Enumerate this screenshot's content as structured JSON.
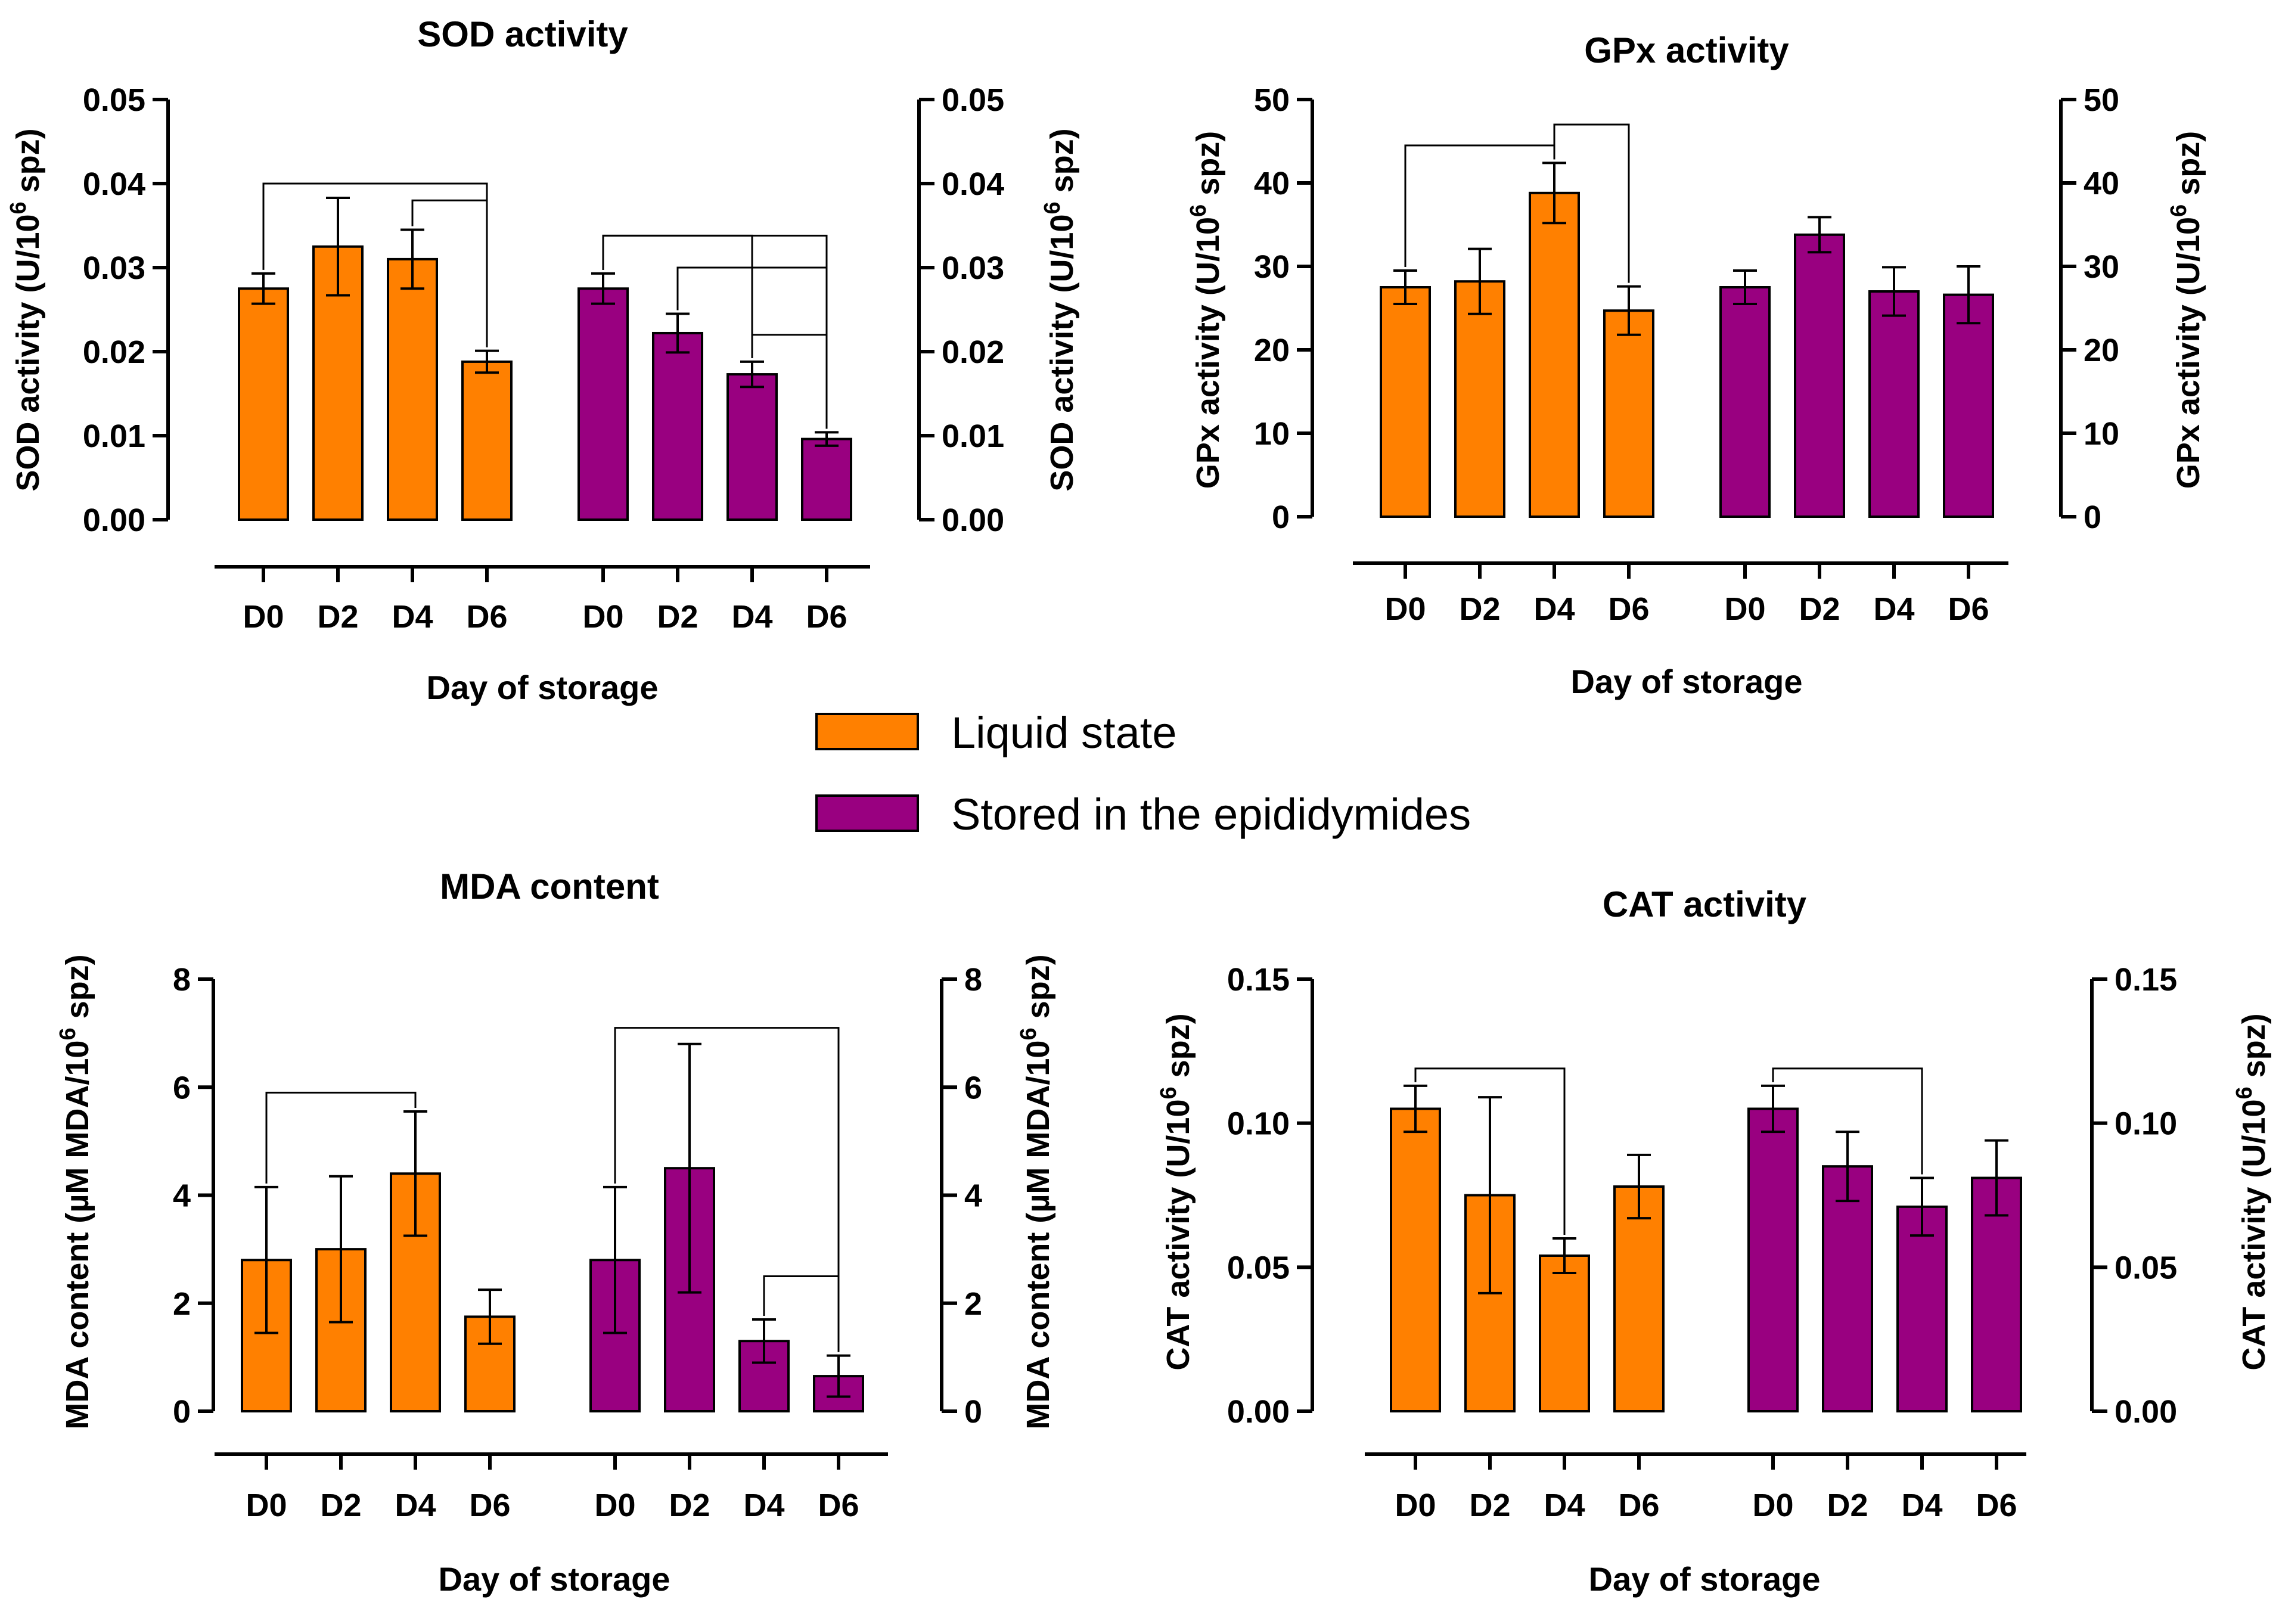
{
  "colors": {
    "liquid": "#FF8000",
    "epididymides": "#990080",
    "axis": "#000000"
  },
  "legend": [
    {
      "label": "Liquid state",
      "color": "#FF8000"
    },
    {
      "label": "Stored in the epididymides",
      "color": "#990080"
    }
  ],
  "chart_data": [
    {
      "type": "bar",
      "title": "SOD activity",
      "xlabel": "Day of storage",
      "ylabel": "SOD activity (U/10^6 spz)",
      "ylabel_parts": {
        "pre": "SOD activity (U/10",
        "sup": "6",
        "post": " spz)"
      },
      "ylim": [
        0,
        0.05
      ],
      "yticks": [
        "0.00",
        "0.01",
        "0.02",
        "0.03",
        "0.04",
        "0.05"
      ],
      "categories": [
        "D0",
        "D2",
        "D4",
        "D6"
      ],
      "series": [
        {
          "name": "Liquid state",
          "values": [
            0.0275,
            0.0325,
            0.031,
            0.0188
          ],
          "errors": [
            0.0018,
            0.0058,
            0.0035,
            0.0013
          ]
        },
        {
          "name": "Stored in the epididymides",
          "values": [
            0.0275,
            0.0222,
            0.0173,
            0.0096
          ],
          "errors": [
            0.0018,
            0.0023,
            0.0015,
            0.0008
          ]
        }
      ],
      "brackets": [
        {
          "series": 0,
          "from": 0,
          "to": 3,
          "y": 0.04
        },
        {
          "series": 0,
          "from": 2,
          "to": 3,
          "y": 0.038
        },
        {
          "series": 1,
          "from": 0,
          "to": 2,
          "y": 0.0338
        },
        {
          "series": 1,
          "from": 0,
          "to": 3,
          "y": 0.0338
        },
        {
          "series": 1,
          "from": 1,
          "to": 3,
          "y": 0.03
        },
        {
          "series": 1,
          "from": 2,
          "to": 3,
          "y": 0.022
        }
      ]
    },
    {
      "type": "bar",
      "title": "GPx activity",
      "xlabel": "Day of storage",
      "ylabel": "GPx activity (U/10^6 spz)",
      "ylabel_parts": {
        "pre": "GPx activity (U/10",
        "sup": "6",
        "post": " spz)"
      },
      "ylim": [
        0,
        50
      ],
      "yticks": [
        "0",
        "10",
        "20",
        "30",
        "40",
        "50"
      ],
      "categories": [
        "D0",
        "D2",
        "D4",
        "D6"
      ],
      "series": [
        {
          "name": "Liquid state",
          "values": [
            27.5,
            28.2,
            38.8,
            24.7
          ],
          "errors": [
            2.0,
            3.9,
            3.6,
            2.9
          ]
        },
        {
          "name": "Stored in the epididymides",
          "values": [
            27.5,
            33.8,
            27.0,
            26.6
          ],
          "errors": [
            2.0,
            2.1,
            2.9,
            3.4
          ]
        }
      ],
      "brackets": [
        {
          "series": 0,
          "from": 0,
          "to": 2,
          "y": 44.5
        },
        {
          "series": 0,
          "from": 2,
          "to": 3,
          "y": 47.0
        }
      ]
    },
    {
      "type": "bar",
      "title": "MDA content",
      "xlabel": "Day of storage",
      "ylabel": "MDA content (µM MDA/10^6 spz)",
      "ylabel_parts": {
        "pre": "MDA content (µM MDA/10",
        "sup": "6",
        "post": " spz)"
      },
      "ylim": [
        0,
        8
      ],
      "yticks": [
        "0",
        "2",
        "4",
        "6",
        "8"
      ],
      "categories": [
        "D0",
        "D2",
        "D4",
        "D6"
      ],
      "series": [
        {
          "name": "Liquid state",
          "values": [
            2.8,
            3.0,
            4.4,
            1.75
          ],
          "errors": [
            1.35,
            1.35,
            1.15,
            0.5
          ]
        },
        {
          "name": "Stored in the epididymides",
          "values": [
            2.8,
            4.5,
            1.3,
            0.65
          ],
          "errors": [
            1.35,
            2.3,
            0.4,
            0.38
          ]
        }
      ],
      "brackets": [
        {
          "series": 0,
          "from": 0,
          "to": 2,
          "y": 5.9
        },
        {
          "series": 1,
          "from": 0,
          "to": 3,
          "y": 7.1
        },
        {
          "series": 1,
          "from": 2,
          "to": 3,
          "y": 2.5
        }
      ]
    },
    {
      "type": "bar",
      "title": "CAT activity",
      "xlabel": "Day of storage",
      "ylabel": "CAT activity (U/10^6 spz)",
      "ylabel_parts": {
        "pre": "CAT activity (U/10",
        "sup": "6",
        "post": " spz)"
      },
      "ylim": [
        0,
        0.15
      ],
      "yticks": [
        "0.00",
        "0.05",
        "0.10",
        "0.15"
      ],
      "categories": [
        "D0",
        "D2",
        "D4",
        "D6"
      ],
      "series": [
        {
          "name": "Liquid state",
          "values": [
            0.105,
            0.075,
            0.054,
            0.078
          ],
          "errors": [
            0.008,
            0.034,
            0.006,
            0.011
          ]
        },
        {
          "name": "Stored in the epididymides",
          "values": [
            0.105,
            0.085,
            0.071,
            0.081
          ],
          "errors": [
            0.008,
            0.012,
            0.01,
            0.013
          ]
        }
      ],
      "brackets": [
        {
          "series": 0,
          "from": 0,
          "to": 2,
          "y": 0.119
        },
        {
          "series": 1,
          "from": 0,
          "to": 2,
          "y": 0.119
        }
      ]
    }
  ]
}
